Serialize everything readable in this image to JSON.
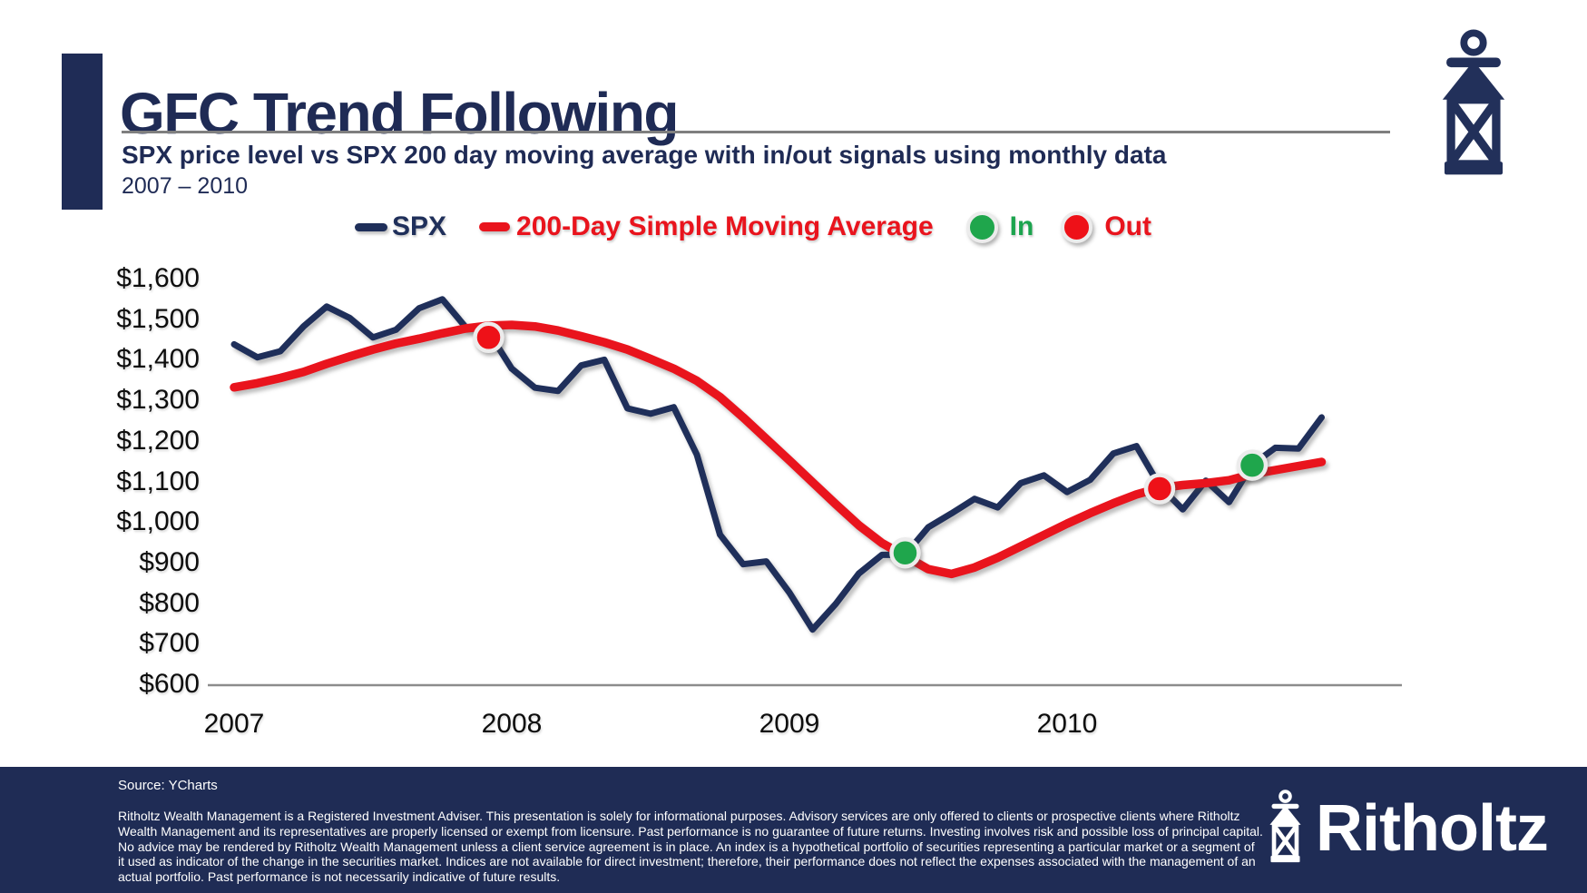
{
  "header": {
    "title": "GFC Trend Following",
    "subtitle": "SPX price level vs SPX 200 day moving average with in/out signals using monthly data",
    "date_range": "2007 – 2010"
  },
  "legend": {
    "spx_label": "SPX",
    "sma_label": "200-Day Simple Moving Average",
    "in_label": "In",
    "out_label": "Out"
  },
  "colors": {
    "navy": "#1f2f5a",
    "red": "#e9141d",
    "green": "#1fa64c",
    "signal_out": "#ee1118",
    "signal_in": "#1fa64c",
    "axis_gray": "#8c8c8c",
    "footer_navy": "#1f2c55"
  },
  "chart_data": {
    "type": "line",
    "title": "SPX price level vs SPX 200 day moving average with in/out signals using monthly data",
    "x_unit": "month",
    "x_start": "2007-01",
    "x_end": "2010-12",
    "ylim": [
      600,
      1600
    ],
    "grid": false,
    "x_ticks": [
      {
        "label": "2007",
        "month_index": 0
      },
      {
        "label": "2008",
        "month_index": 12
      },
      {
        "label": "2009",
        "month_index": 24
      },
      {
        "label": "2010",
        "month_index": 36
      }
    ],
    "y_ticks": [
      {
        "label": "$600",
        "value": 600
      },
      {
        "label": "$700",
        "value": 700
      },
      {
        "label": "$800",
        "value": 800
      },
      {
        "label": "$900",
        "value": 900
      },
      {
        "label": "$1,000",
        "value": 1000
      },
      {
        "label": "$1,100",
        "value": 1100
      },
      {
        "label": "$1,200",
        "value": 1200
      },
      {
        "label": "$1,300",
        "value": 1300
      },
      {
        "label": "$1,400",
        "value": 1400
      },
      {
        "label": "$1,500",
        "value": 1500
      },
      {
        "label": "$1,600",
        "value": 1600
      }
    ],
    "series": [
      {
        "name": "SPX",
        "color": "#1f2f5a",
        "values": [
          1438,
          1406,
          1421,
          1482,
          1531,
          1503,
          1455,
          1474,
          1527,
          1549,
          1481,
          1468,
          1378,
          1331,
          1323,
          1386,
          1400,
          1280,
          1267,
          1283,
          1166,
          969,
          896,
          903,
          826,
          735,
          798,
          873,
          919,
          919,
          987,
          1021,
          1057,
          1036,
          1096,
          1115,
          1074,
          1104,
          1169,
          1187,
          1089,
          1031,
          1102,
          1049,
          1141,
          1183,
          1181,
          1258
        ]
      },
      {
        "name": "200-Day Simple Moving Average",
        "color": "#e9141d",
        "values": [
          1332,
          1342,
          1355,
          1370,
          1390,
          1408,
          1425,
          1440,
          1452,
          1465,
          1477,
          1484,
          1486,
          1482,
          1472,
          1458,
          1443,
          1425,
          1402,
          1378,
          1348,
          1308,
          1258,
          1205,
          1152,
          1098,
          1044,
          992,
          948,
          916,
          884,
          872,
          888,
          912,
          940,
          968,
          996,
          1022,
          1046,
          1068,
          1084,
          1091,
          1096,
          1103,
          1118,
          1128,
          1138,
          1148
        ]
      }
    ],
    "signals": [
      {
        "type": "Out",
        "month": "2007-12",
        "month_index": 11,
        "value": 1455
      },
      {
        "type": "In",
        "month": "2009-06",
        "month_index": 29,
        "value": 924
      },
      {
        "type": "Out",
        "month": "2010-05",
        "month_index": 40,
        "value": 1082
      },
      {
        "type": "In",
        "month": "2010-09",
        "month_index": 44,
        "value": 1140
      }
    ]
  },
  "footer": {
    "source": "Source: YCharts",
    "disclaimer": "Ritholtz Wealth Management is a Registered Investment Adviser. This presentation is solely for informational purposes. Advisory services are only offered to clients or prospective clients where Ritholtz Wealth Management and its representatives are properly licensed or exempt from licensure. Past performance is no guarantee of future returns. Investing involves risk and possible loss of principal capital. No advice may be rendered by Ritholtz Wealth Management unless a client service agreement is in place. An index is a hypothetical portfolio of securities representing a particular market or a segment of it used as indicator of the change in the securities market. Indices are not available for direct investment; therefore, their performance does not reflect the expenses associated with the management of an actual portfolio. Past performance is not necessarily indicative of future results.",
    "brand": "Ritholtz"
  }
}
